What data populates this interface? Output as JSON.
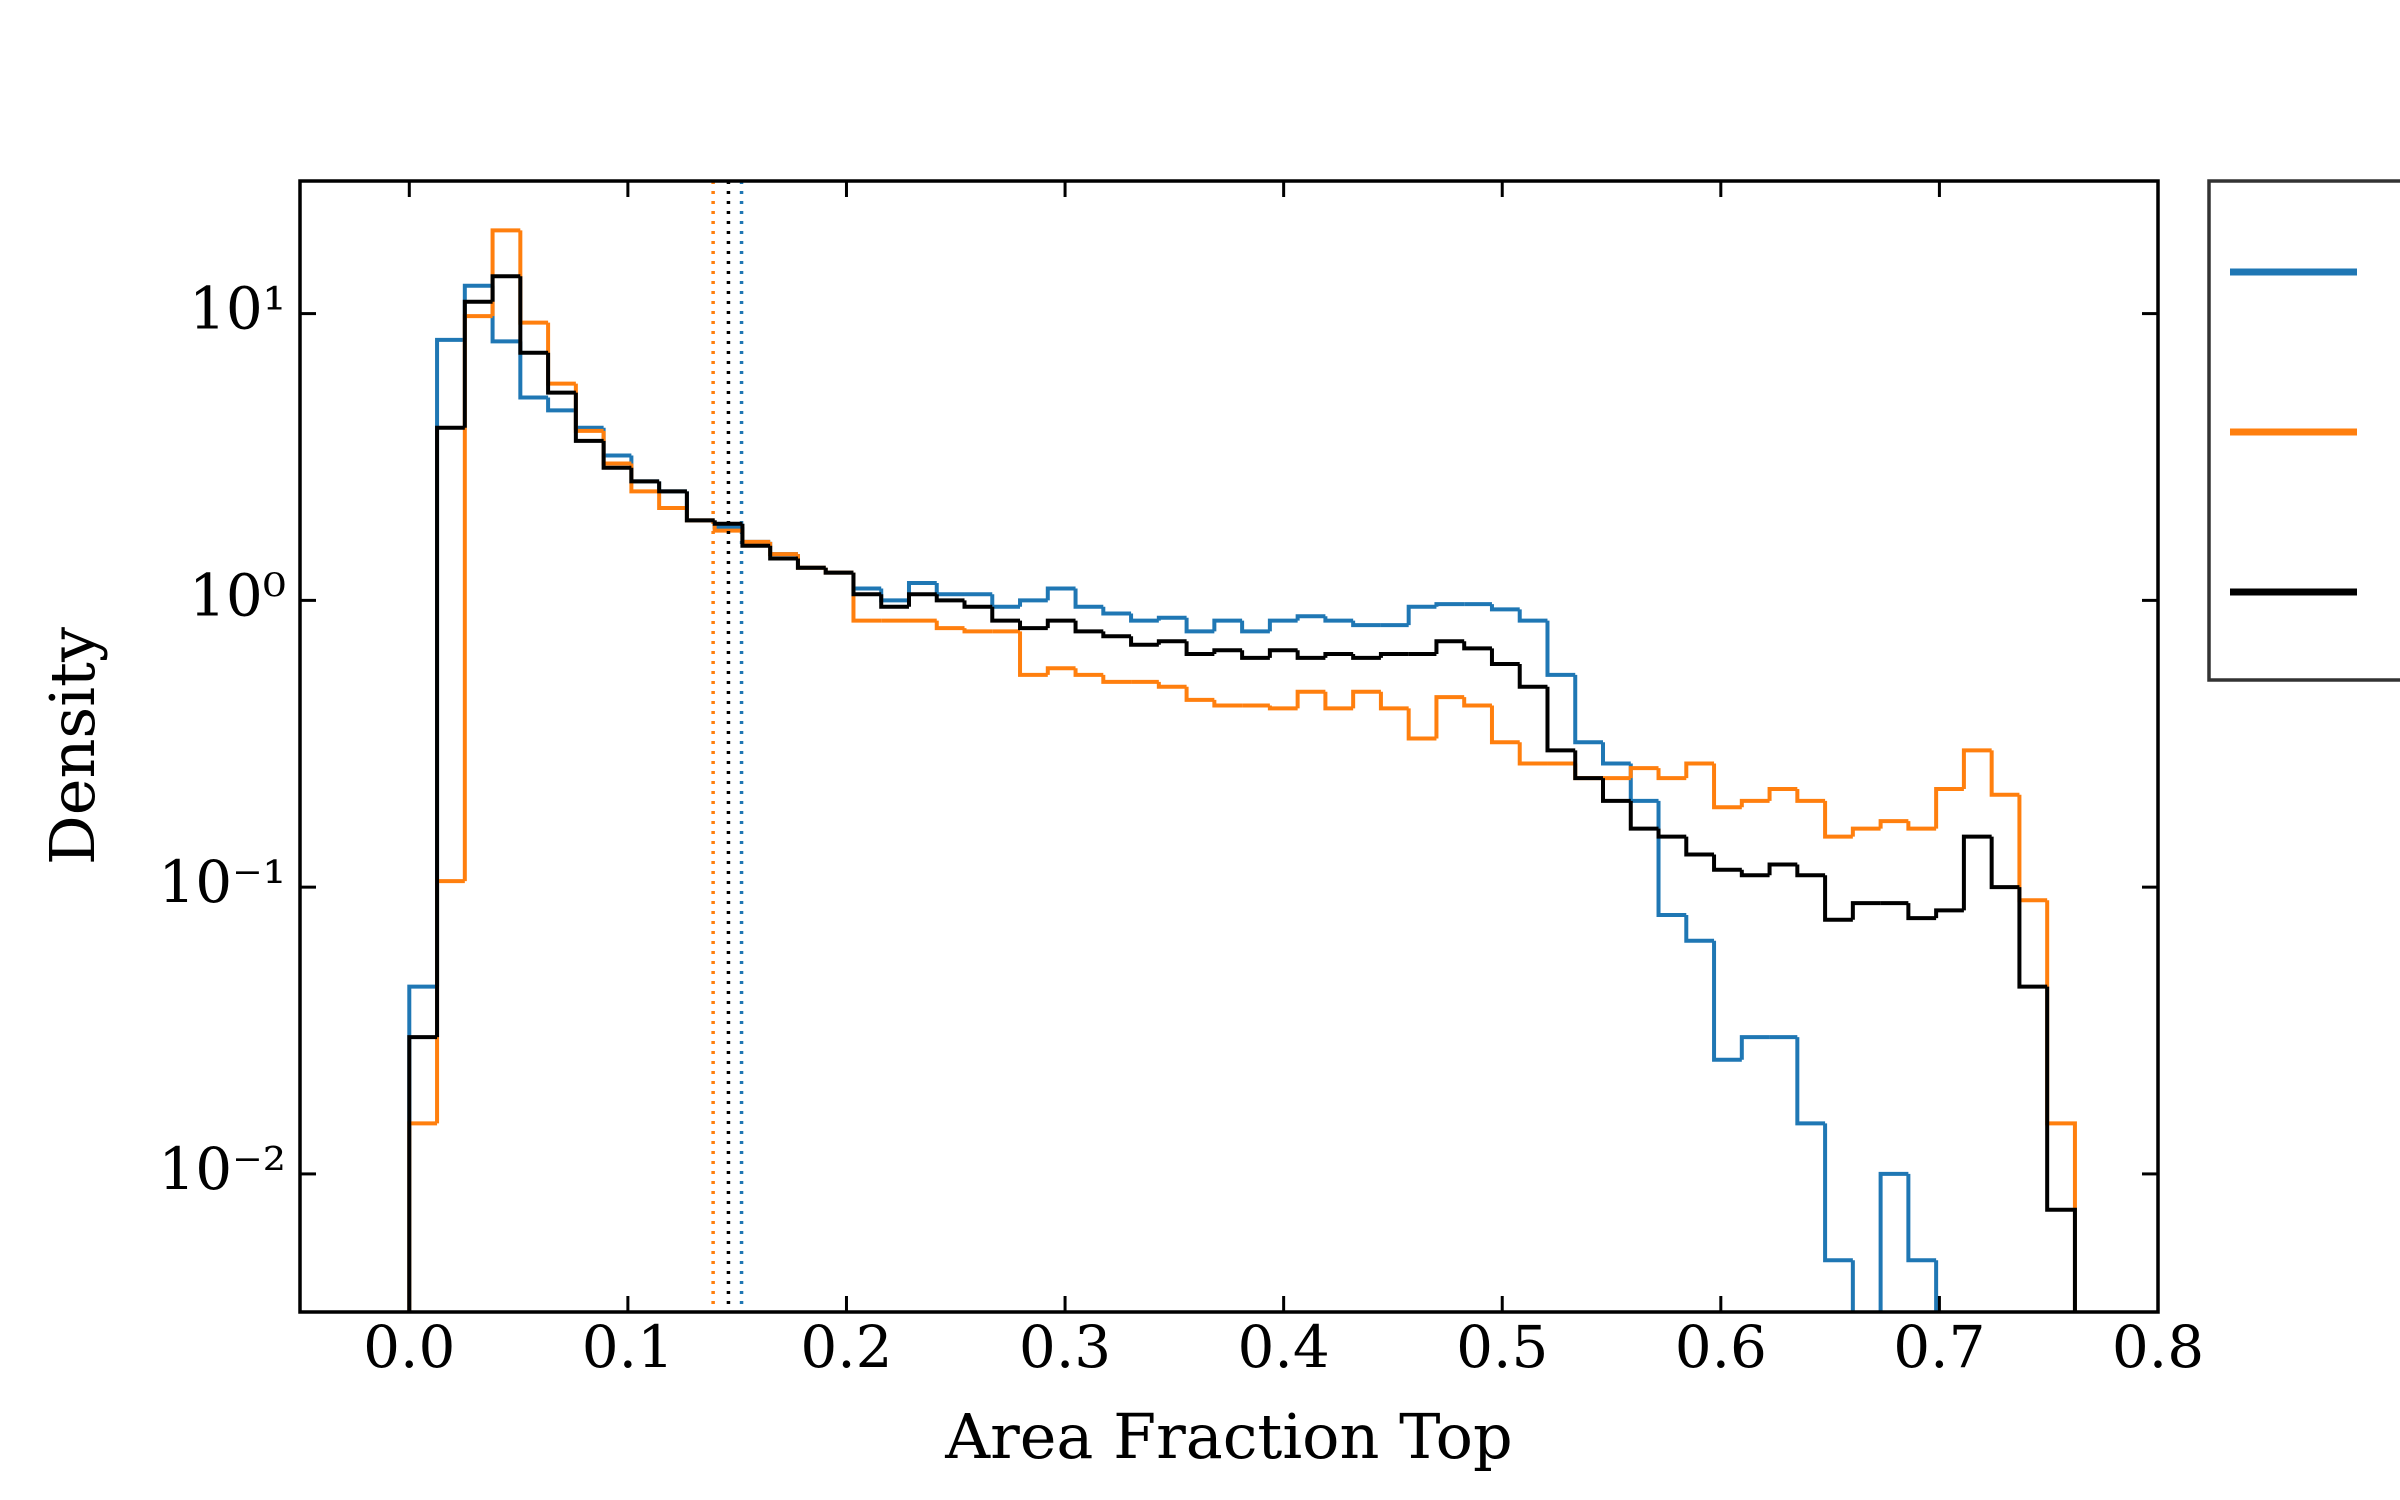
{
  "chart_data": {
    "type": "histogram",
    "x_label": "Area Fraction Top",
    "y_label": "Density",
    "log_y": true,
    "xlim": [
      -0.05,
      0.8
    ],
    "ylim": [
      0.0033,
      29
    ],
    "xticks": [
      {
        "value": 0,
        "label": "0.0"
      },
      0.1,
      0.2,
      0.3,
      0.4,
      0.5,
      0.6,
      0.7,
      0.8
    ],
    "yticks": [
      {
        "value": 0.01,
        "label": "10⁻²"
      },
      {
        "value": 0.1,
        "label": "10⁻¹"
      },
      {
        "value": 1,
        "label": "10⁰"
      },
      {
        "value": 10,
        "label": "10¹"
      }
    ],
    "bins": [
      0,
      0.0127,
      0.0254,
      0.0381,
      0.0508,
      0.0635,
      0.0762,
      0.0889,
      0.1016,
      0.1143,
      0.127,
      0.1397,
      0.1524,
      0.1651,
      0.1778,
      0.1905,
      0.2032,
      0.2159,
      0.2286,
      0.2413,
      0.254,
      0.2667,
      0.2794,
      0.2921,
      0.3048,
      0.3175,
      0.3302,
      0.3429,
      0.3556,
      0.3683,
      0.381,
      0.3937,
      0.4064,
      0.4191,
      0.4318,
      0.4445,
      0.4572,
      0.4699,
      0.4826,
      0.4953,
      0.508,
      0.5207,
      0.5334,
      0.5461,
      0.5588,
      0.5715,
      0.5842,
      0.5969,
      0.6096,
      0.6223,
      0.635,
      0.6477,
      0.6604,
      0.6731,
      0.6858,
      0.6985,
      0.7112,
      0.7239,
      0.7366,
      0.7493,
      0.762
    ],
    "series": [
      {
        "color": "#1f77b4",
        "values": [
          0.045,
          8.1,
          12.5,
          8.0,
          5.1,
          4.6,
          4.0,
          3.2,
          2.6,
          2.4,
          1.9,
          1.8,
          1.6,
          1.45,
          1.3,
          1.25,
          1.1,
          1.0,
          1.15,
          1.05,
          1.05,
          0.95,
          1.0,
          1.1,
          0.95,
          0.9,
          0.85,
          0.87,
          0.78,
          0.85,
          0.78,
          0.85,
          0.88,
          0.85,
          0.82,
          0.82,
          0.95,
          0.97,
          0.97,
          0.93,
          0.85,
          0.55,
          0.32,
          0.27,
          0.2,
          0.08,
          0.065,
          0.025,
          0.03,
          0.03,
          0.015,
          0.005,
          0,
          0.01,
          0.005,
          0,
          0,
          0,
          0,
          0
        ],
        "vline": 0.152
      },
      {
        "color": "#ff7f0e",
        "values": [
          0.015,
          0.105,
          9.8,
          19.5,
          9.3,
          5.7,
          3.9,
          3.0,
          2.4,
          2.1,
          1.9,
          1.75,
          1.6,
          1.45,
          1.3,
          1.25,
          0.85,
          0.85,
          0.85,
          0.8,
          0.78,
          0.78,
          0.55,
          0.58,
          0.55,
          0.52,
          0.52,
          0.5,
          0.45,
          0.43,
          0.43,
          0.42,
          0.48,
          0.42,
          0.48,
          0.42,
          0.33,
          0.46,
          0.43,
          0.32,
          0.27,
          0.27,
          0.24,
          0.24,
          0.26,
          0.24,
          0.27,
          0.19,
          0.2,
          0.22,
          0.2,
          0.15,
          0.16,
          0.17,
          0.16,
          0.22,
          0.3,
          0.21,
          0.09,
          0.015
        ],
        "vline": 0.139
      },
      {
        "color": "#000000",
        "values": [
          0.03,
          4.0,
          11.0,
          13.5,
          7.3,
          5.3,
          3.6,
          2.9,
          2.6,
          2.4,
          1.9,
          1.85,
          1.55,
          1.4,
          1.3,
          1.25,
          1.05,
          0.95,
          1.05,
          1.0,
          0.95,
          0.85,
          0.8,
          0.85,
          0.78,
          0.75,
          0.7,
          0.72,
          0.65,
          0.67,
          0.63,
          0.67,
          0.63,
          0.65,
          0.63,
          0.65,
          0.65,
          0.72,
          0.68,
          0.6,
          0.5,
          0.3,
          0.24,
          0.2,
          0.16,
          0.15,
          0.13,
          0.115,
          0.11,
          0.12,
          0.11,
          0.077,
          0.088,
          0.088,
          0.078,
          0.083,
          0.15,
          0.1,
          0.045,
          0.0075
        ],
        "vline": 0.146
      }
    ]
  }
}
